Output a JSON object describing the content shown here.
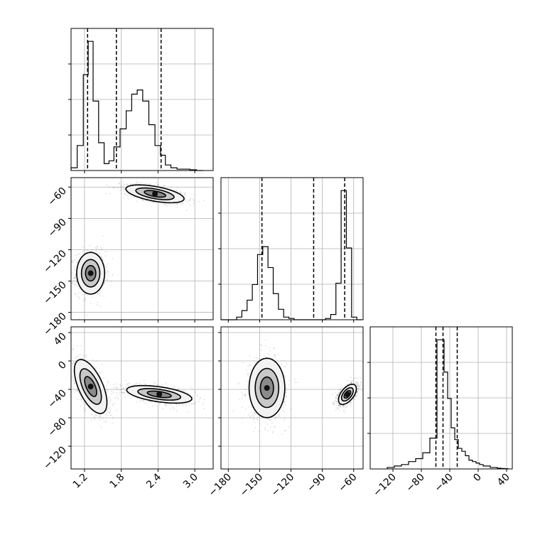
{
  "chart_data": {
    "type": "corner",
    "parameters": [
      "",
      "",
      ""
    ],
    "grid": true,
    "ranges": [
      [
        0.98,
        3.3
      ],
      [
        -187,
        -51
      ],
      [
        -152,
        48
      ]
    ],
    "quantiles": [
      [
        1.25,
        1.72,
        2.45
      ],
      [
        -147.8,
        -98.3,
        -68.6
      ],
      [
        -59.5,
        -49.5,
        -29.5
      ]
    ],
    "ticks": [
      {
        "values": [
          1.2,
          1.8,
          2.4,
          3.0
        ],
        "labels": [
          "1.2",
          "1.8",
          "2.4",
          "3.0"
        ]
      },
      {
        "values": [
          -180,
          -150,
          -120,
          -90,
          -60
        ],
        "labels": [
          "−180",
          "−150",
          "−120",
          "−90",
          "−60"
        ]
      },
      {
        "values": [
          -120,
          -80,
          -40,
          0,
          40
        ],
        "labels": [
          "−120",
          "−80",
          "−40",
          "0",
          "40"
        ]
      }
    ],
    "histograms": [
      {
        "bin_edges": [
          0.98,
          1.08,
          1.18,
          1.26,
          1.34,
          1.43,
          1.52,
          1.6,
          1.68,
          1.78,
          1.88,
          1.97,
          2.06,
          2.15,
          2.25,
          2.35,
          2.44,
          2.52,
          2.61,
          2.71,
          2.82,
          2.92,
          3.03,
          3.14
        ],
        "values": [
          0.02,
          0.18,
          0.69,
          0.93,
          0.5,
          0.2,
          0.05,
          0.07,
          0.17,
          0.3,
          0.43,
          0.55,
          0.58,
          0.5,
          0.33,
          0.18,
          0.11,
          0.04,
          0.02,
          0.01,
          0.01,
          0.005,
          0.0
        ]
      },
      {
        "bin_edges": [
          -187,
          -182,
          -177,
          -172,
          -167,
          -162,
          -157,
          -152,
          -147,
          -142,
          -137,
          -132,
          -127,
          -122,
          -117,
          -112,
          -107,
          -102,
          -97,
          -92,
          -87,
          -82,
          -77,
          -72,
          -67,
          -62,
          -57,
          -52
        ],
        "values": [
          0,
          0,
          0,
          0.02,
          0.07,
          0.15,
          0.27,
          0.5,
          0.56,
          0.4,
          0.2,
          0.08,
          0.02,
          0.01,
          0,
          0,
          0,
          0,
          0,
          0,
          0.01,
          0.04,
          0.28,
          0.99,
          0.55,
          0.02,
          0
        ]
      },
      {
        "bin_edges": [
          -128,
          -118,
          -108,
          -98,
          -88,
          -78,
          -68,
          -58,
          -53,
          -48,
          -43,
          -38,
          -33,
          -28,
          -23,
          -18,
          -13,
          -8,
          -3,
          2,
          7,
          12,
          17,
          22,
          27,
          32,
          37,
          42
        ],
        "values": [
          0.01,
          0.02,
          0.03,
          0.05,
          0.07,
          0.11,
          0.21,
          0.88,
          0.88,
          0.66,
          0.48,
          0.28,
          0.2,
          0.14,
          0.12,
          0.09,
          0.06,
          0.05,
          0.04,
          0.03,
          0.02,
          0.02,
          0.01,
          0.01,
          0.005,
          0.003,
          0.002
        ]
      }
    ],
    "pairs": [
      {
        "row": 1,
        "col": 0,
        "modes": [
          {
            "center": [
              1.3,
              -142.5
            ],
            "std": [
              0.12,
              10.5
            ],
            "rho": 0.0
          },
          {
            "center": [
              2.35,
              -66.5
            ],
            "std": [
              0.25,
              4.5
            ],
            "rho": -0.55
          }
        ]
      },
      {
        "row": 2,
        "col": 0,
        "modes": [
          {
            "center": [
              1.3,
              -36
            ],
            "std": [
              0.14,
              20
            ],
            "rho": -0.6
          },
          {
            "center": [
              2.42,
              -47
            ],
            "std": [
              0.28,
              6.5
            ],
            "rho": -0.5
          }
        ]
      },
      {
        "row": 2,
        "col": 1,
        "modes": [
          {
            "center": [
              -143,
              -38
            ],
            "std": [
              9,
              22
            ],
            "rho": 0.0
          },
          {
            "center": [
              -66,
              -47
            ],
            "std": [
              4.5,
              7.5
            ],
            "rho": 0.55
          }
        ]
      }
    ]
  }
}
